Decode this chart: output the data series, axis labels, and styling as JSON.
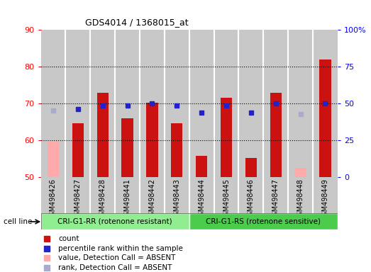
{
  "title": "GDS4014 / 1368015_at",
  "samples": [
    "GSM498426",
    "GSM498427",
    "GSM498428",
    "GSM498441",
    "GSM498442",
    "GSM498443",
    "GSM498444",
    "GSM498445",
    "GSM498446",
    "GSM498447",
    "GSM498448",
    "GSM498449"
  ],
  "bar_values": [
    59.5,
    64.5,
    72.8,
    66.0,
    70.2,
    64.5,
    55.8,
    71.5,
    55.2,
    72.8,
    52.5,
    82.0
  ],
  "bar_absent": [
    true,
    false,
    false,
    false,
    false,
    false,
    false,
    false,
    false,
    false,
    true,
    false
  ],
  "rank_values": [
    68.0,
    68.5,
    69.5,
    69.5,
    70.0,
    69.5,
    67.5,
    69.5,
    67.5,
    70.0,
    67.0,
    70.0
  ],
  "rank_absent": [
    true,
    false,
    false,
    false,
    false,
    false,
    false,
    false,
    false,
    false,
    true,
    false
  ],
  "ylim_left": [
    50,
    90
  ],
  "ylim_right": [
    0,
    100
  ],
  "yticks_left": [
    50,
    60,
    70,
    80,
    90
  ],
  "yticks_right": [
    0,
    25,
    50,
    75,
    100
  ],
  "group1_label": "CRI-G1-RR (rotenone resistant)",
  "group2_label": "CRI-G1-RS (rotenone sensitive)",
  "group1_color": "#90ee90",
  "group2_color": "#4ccc4c",
  "bar_color_present": "#cc1111",
  "bar_color_absent": "#ffaaaa",
  "rank_color_present": "#2222cc",
  "rank_color_absent": "#aaaacc",
  "cell_line_label": "cell line",
  "col_bg_color": "#c8c8c8",
  "plot_bg": "#ffffff",
  "legend_items": [
    {
      "label": "count",
      "color": "#cc1111"
    },
    {
      "label": "percentile rank within the sample",
      "color": "#2222cc"
    },
    {
      "label": "value, Detection Call = ABSENT",
      "color": "#ffaaaa"
    },
    {
      "label": "rank, Detection Call = ABSENT",
      "color": "#aaaacc"
    }
  ]
}
